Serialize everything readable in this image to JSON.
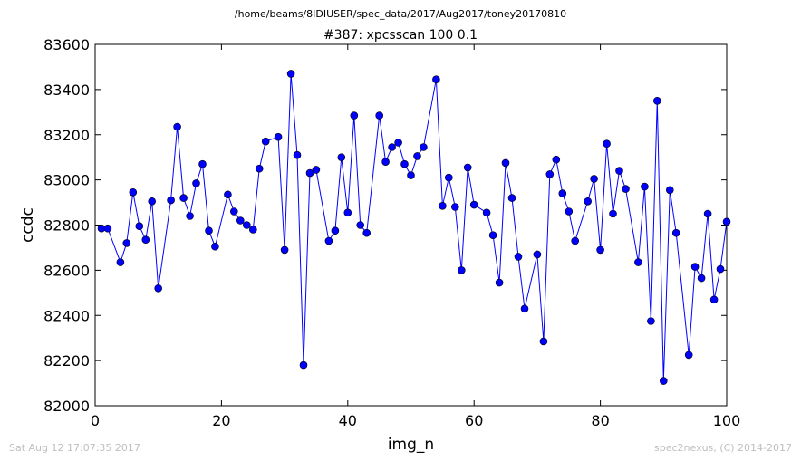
{
  "header": {
    "path": "/home/beams/8IDIUSER/spec_data/2017/Aug2017/toney20170810",
    "title": "#387: xpcsscan 100 0.1"
  },
  "footer": {
    "timestamp": "Sat Aug 12 17:07:35 2017",
    "credit": "spec2nexus, (C) 2014-2017"
  },
  "chart_data": {
    "type": "line",
    "title": "#387: xpcsscan 100 0.1",
    "xlabel": "img_n",
    "ylabel": "ccdc",
    "xlim": [
      0,
      100
    ],
    "ylim": [
      82000,
      83600
    ],
    "x_ticks": [
      "0",
      "20",
      "40",
      "60",
      "80",
      "100"
    ],
    "y_ticks": [
      "82000",
      "82200",
      "82400",
      "82600",
      "82800",
      "83000",
      "83200",
      "83400",
      "83600"
    ],
    "marker": "circle",
    "grid": false,
    "colors": {
      "series": "#0000ff"
    },
    "series": [
      {
        "x": [
          1,
          2,
          4,
          5,
          6,
          7,
          8,
          9,
          10,
          12,
          13,
          14,
          15,
          16,
          17,
          18,
          19,
          21,
          22,
          23,
          24,
          25,
          26,
          27,
          29,
          30,
          31,
          32,
          33,
          34,
          35,
          37,
          38,
          39,
          40,
          41,
          42,
          43,
          45,
          46,
          47,
          48,
          49,
          50,
          51,
          52,
          54,
          55,
          56,
          57,
          58,
          59,
          60,
          62,
          63,
          64,
          65,
          66,
          67,
          68,
          70,
          71,
          72,
          73,
          74,
          75,
          76,
          78,
          79,
          80,
          81,
          82,
          83,
          84,
          86,
          87,
          88,
          89,
          90,
          91,
          92,
          94,
          95,
          96,
          97,
          98,
          99,
          100
        ],
        "values": [
          82785,
          82785,
          82635,
          82720,
          82945,
          82795,
          82735,
          82905,
          82520,
          82910,
          83235,
          82920,
          82840,
          82985,
          83070,
          82775,
          82705,
          82935,
          82860,
          82820,
          82800,
          82780,
          83050,
          83170,
          83190,
          82690,
          83470,
          83110,
          82180,
          83030,
          83045,
          82730,
          82775,
          83100,
          82855,
          83285,
          82800,
          82765,
          83285,
          83080,
          83145,
          83165,
          83070,
          83020,
          83105,
          83145,
          83445,
          82885,
          83010,
          82880,
          82600,
          83055,
          82890,
          82855,
          82755,
          82545,
          83075,
          82920,
          82660,
          82430,
          82670,
          82285,
          83025,
          83090,
          82940,
          82860,
          82730,
          82905,
          83005,
          82690,
          83160,
          82850,
          83040,
          82960,
          82635,
          82970,
          82375,
          83350,
          82110,
          82955,
          82765,
          82225,
          82615,
          82565,
          82850,
          82470,
          82605,
          82815
        ]
      }
    ]
  }
}
